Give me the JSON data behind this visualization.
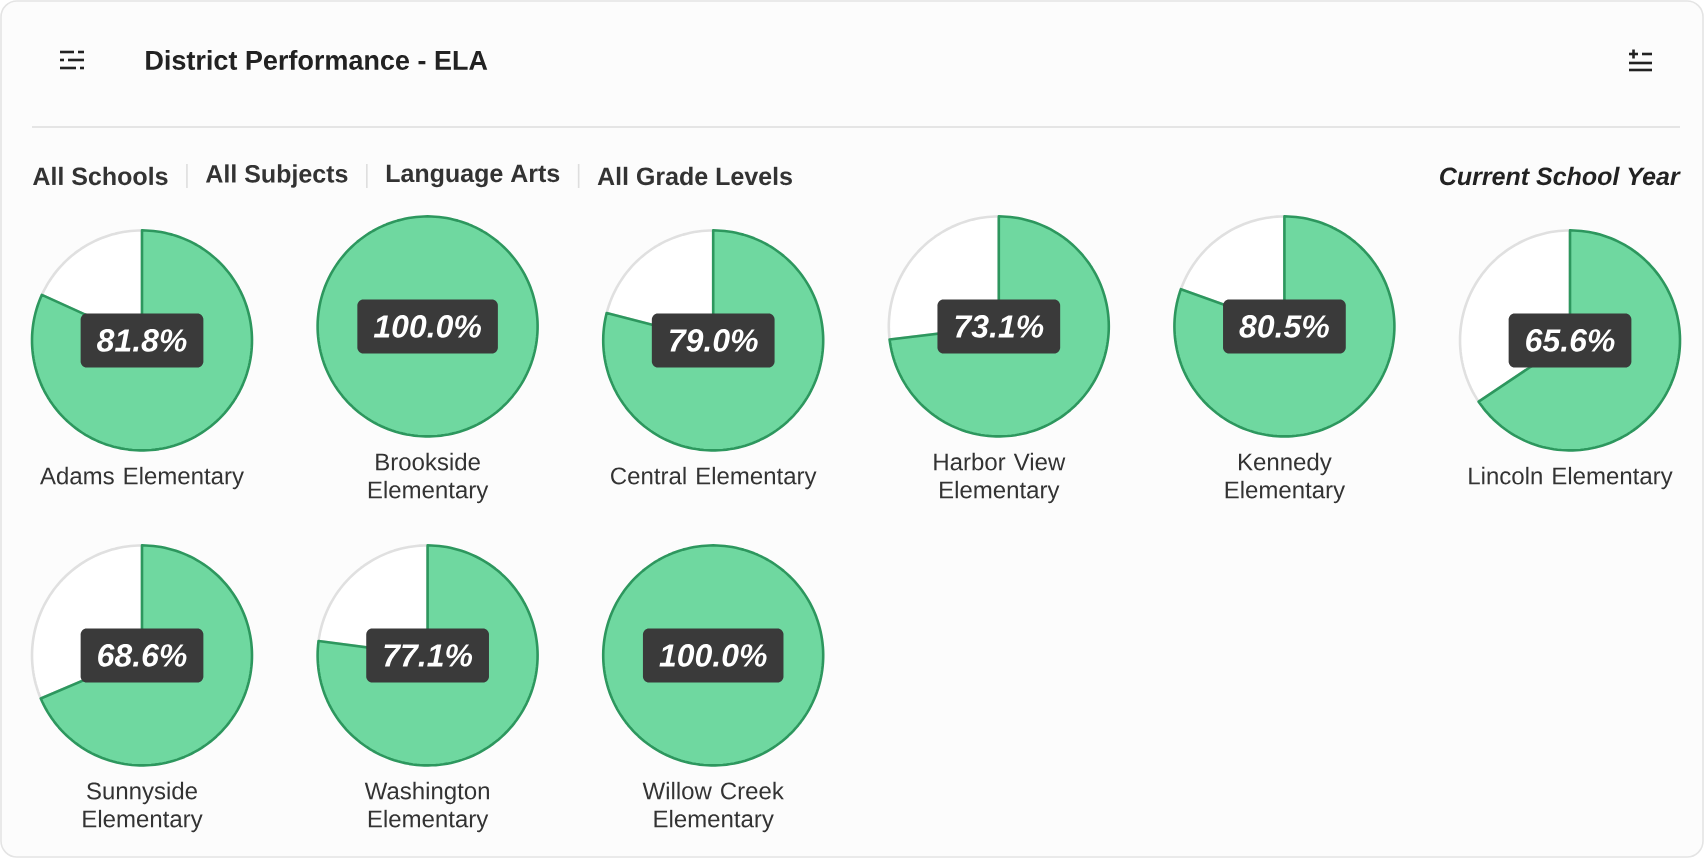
{
  "chart_data": [
    {
      "type": "other",
      "title": "District Performance - ELA",
      "subtitle": "Current School Year",
      "annotations": [
        "All Schools",
        "All Subjects",
        "Language Arts",
        "All Grade Levels"
      ]
    },
    {
      "type": "pie",
      "title": "Adams Elementary",
      "categories": [
        null,
        null
      ],
      "values": [
        81.8,
        18.2
      ],
      "colors": [
        "#6fd8a0",
        "#ffffff"
      ],
      "value_labels": [
        "81.8%",
        null
      ]
    },
    {
      "type": "pie",
      "title": "Brookside Elementary",
      "categories": [
        null
      ],
      "values": [
        100.0
      ],
      "colors": [
        "#6fd8a0"
      ],
      "value_labels": [
        "100.0%"
      ]
    },
    {
      "type": "pie",
      "title": "Central Elementary",
      "categories": [
        null,
        null
      ],
      "values": [
        79.0,
        21.0
      ],
      "colors": [
        "#6fd8a0",
        "#ffffff"
      ],
      "value_labels": [
        "79.0%",
        null
      ]
    },
    {
      "type": "pie",
      "title": "Harbor View Elementary",
      "categories": [
        null,
        null
      ],
      "values": [
        73.1,
        26.9
      ],
      "colors": [
        "#6fd8a0",
        "#ffffff"
      ],
      "value_labels": [
        "73.1%",
        null
      ]
    },
    {
      "type": "pie",
      "title": "Kennedy Elementary",
      "categories": [
        null,
        null
      ],
      "values": [
        80.5,
        19.5
      ],
      "colors": [
        "#6fd8a0",
        "#ffffff"
      ],
      "value_labels": [
        "80.5%",
        null
      ]
    },
    {
      "type": "pie",
      "title": "Lincoln Elementary",
      "categories": [
        null,
        null
      ],
      "values": [
        65.6,
        34.4
      ],
      "colors": [
        "#6fd8a0",
        "#ffffff"
      ],
      "value_labels": [
        "65.6%",
        null
      ]
    },
    {
      "type": "pie",
      "title": "Sunnyside Elementary",
      "categories": [
        null,
        null
      ],
      "values": [
        68.6,
        31.4
      ],
      "colors": [
        "#6fd8a0",
        "#ffffff"
      ],
      "value_labels": [
        "68.6%",
        null
      ]
    },
    {
      "type": "pie",
      "title": "Washington Elementary",
      "categories": [
        null,
        null
      ],
      "values": [
        77.1,
        22.9
      ],
      "colors": [
        "#6fd8a0",
        "#ffffff"
      ],
      "value_labels": [
        "77.1%",
        null
      ]
    },
    {
      "type": "pie",
      "title": "Willow Creek Elementary",
      "categories": [
        null
      ],
      "values": [
        100.0
      ],
      "colors": [
        "#6fd8a0"
      ],
      "value_labels": [
        "100.0%"
      ]
    }
  ]
}
